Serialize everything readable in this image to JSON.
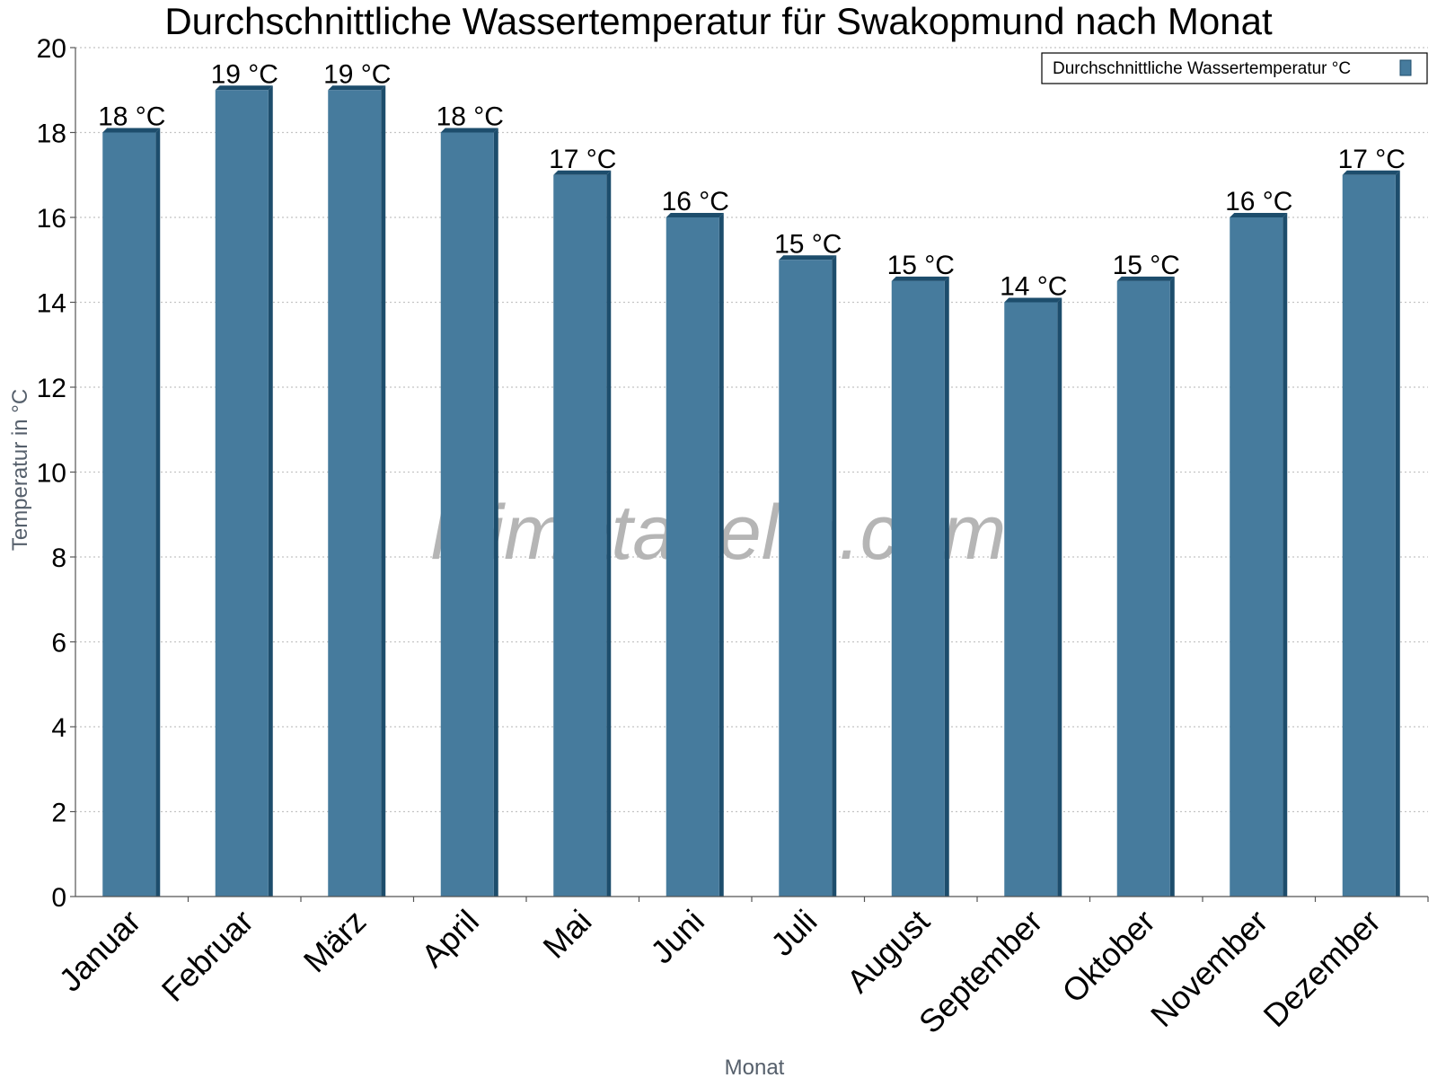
{
  "chart_data": {
    "type": "bar",
    "title": "Durchschnittliche Wassertemperatur für Swakopmund nach Monat",
    "xlabel": "Monat",
    "ylabel": "Temperatur in °C",
    "ylim": [
      0,
      20
    ],
    "yticks": [
      0,
      2,
      4,
      6,
      8,
      10,
      12,
      14,
      16,
      18,
      20
    ],
    "grid": true,
    "legend_position": "top-right",
    "categories": [
      "Januar",
      "Februar",
      "März",
      "April",
      "Mai",
      "Juni",
      "Juli",
      "August",
      "September",
      "Oktober",
      "November",
      "Dezember"
    ],
    "series": [
      {
        "name": "Durchschnittliche Wassertemperatur °C",
        "values": [
          18,
          19,
          19,
          18,
          17,
          16,
          15,
          14.5,
          14,
          14.5,
          16,
          17
        ],
        "data_labels": [
          "18 °C",
          "19 °C",
          "19 °C",
          "18 °C",
          "17 °C",
          "16 °C",
          "15 °C",
          "15 °C",
          "14 °C",
          "15 °C",
          "16 °C",
          "17 °C"
        ]
      }
    ],
    "colors": {
      "bar_face": "#467b9d",
      "bar_side": "#1d4d6c",
      "bar_top": "#1d4d6c"
    },
    "watermark": "klimatabelle.com"
  }
}
